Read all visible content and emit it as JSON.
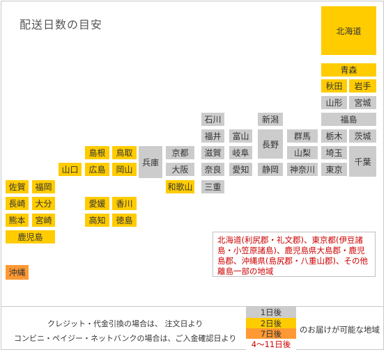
{
  "title": "配送日数の目安",
  "colors": {
    "day1": "#cccccc",
    "day2": "#ffcc00",
    "day7": "#ff9933",
    "day4_11": "#ffffff",
    "note_text": "#cc0000"
  },
  "prefectures": {
    "hokkaido": "北海道",
    "aomori": "青森",
    "akita": "秋田",
    "iwate": "岩手",
    "yamagata": "山形",
    "miyagi": "宮城",
    "fukushima": "福島",
    "ishikawa": "石川",
    "niigata": "新潟",
    "fukui": "福井",
    "toyama": "富山",
    "gunma": "群馬",
    "tochigi": "栃木",
    "ibaraki": "茨城",
    "shimane": "島根",
    "tottori": "鳥取",
    "hyogo": "兵庫",
    "kyoto": "京都",
    "shiga": "滋賀",
    "gifu": "岐阜",
    "nagano": "長野",
    "yamanashi": "山梨",
    "saitama": "埼玉",
    "chiba": "千葉",
    "yamaguchi": "山口",
    "hiroshima": "広島",
    "okayama": "岡山",
    "osaka": "大阪",
    "nara": "奈良",
    "aichi": "愛知",
    "shizuoka": "静岡",
    "kanagawa": "神奈川",
    "tokyo": "東京",
    "saga": "佐賀",
    "fukuoka": "福岡",
    "wakayama": "和歌山",
    "mie": "三重",
    "nagasaki": "長崎",
    "oita": "大分",
    "ehime": "愛媛",
    "kagawa": "香川",
    "kumamoto": "熊本",
    "miyazaki": "宮崎",
    "kochi": "高知",
    "tokushima": "徳島",
    "kagoshima": "鹿児島",
    "okinawa": "沖縄"
  },
  "note": "北海道(利尻郡・礼文郡)、東京都(伊豆諸島・小笠原諸島)、鹿児島県大島郡・鹿児島郡、沖縄県(島尻郡・八重山郡)、その他離島一部の地域",
  "footer": {
    "line1": "クレジット・代金引換の場合は、 注文日より",
    "line2": "コンビニ・ペイジー・ネットバンクの場合は、ご入金確認日より",
    "legend": {
      "day1": "1日後",
      "day2": "2日後",
      "day7": "7日後",
      "day4_11": "4～11日後"
    },
    "caption": "のお届けが可能な地域"
  }
}
